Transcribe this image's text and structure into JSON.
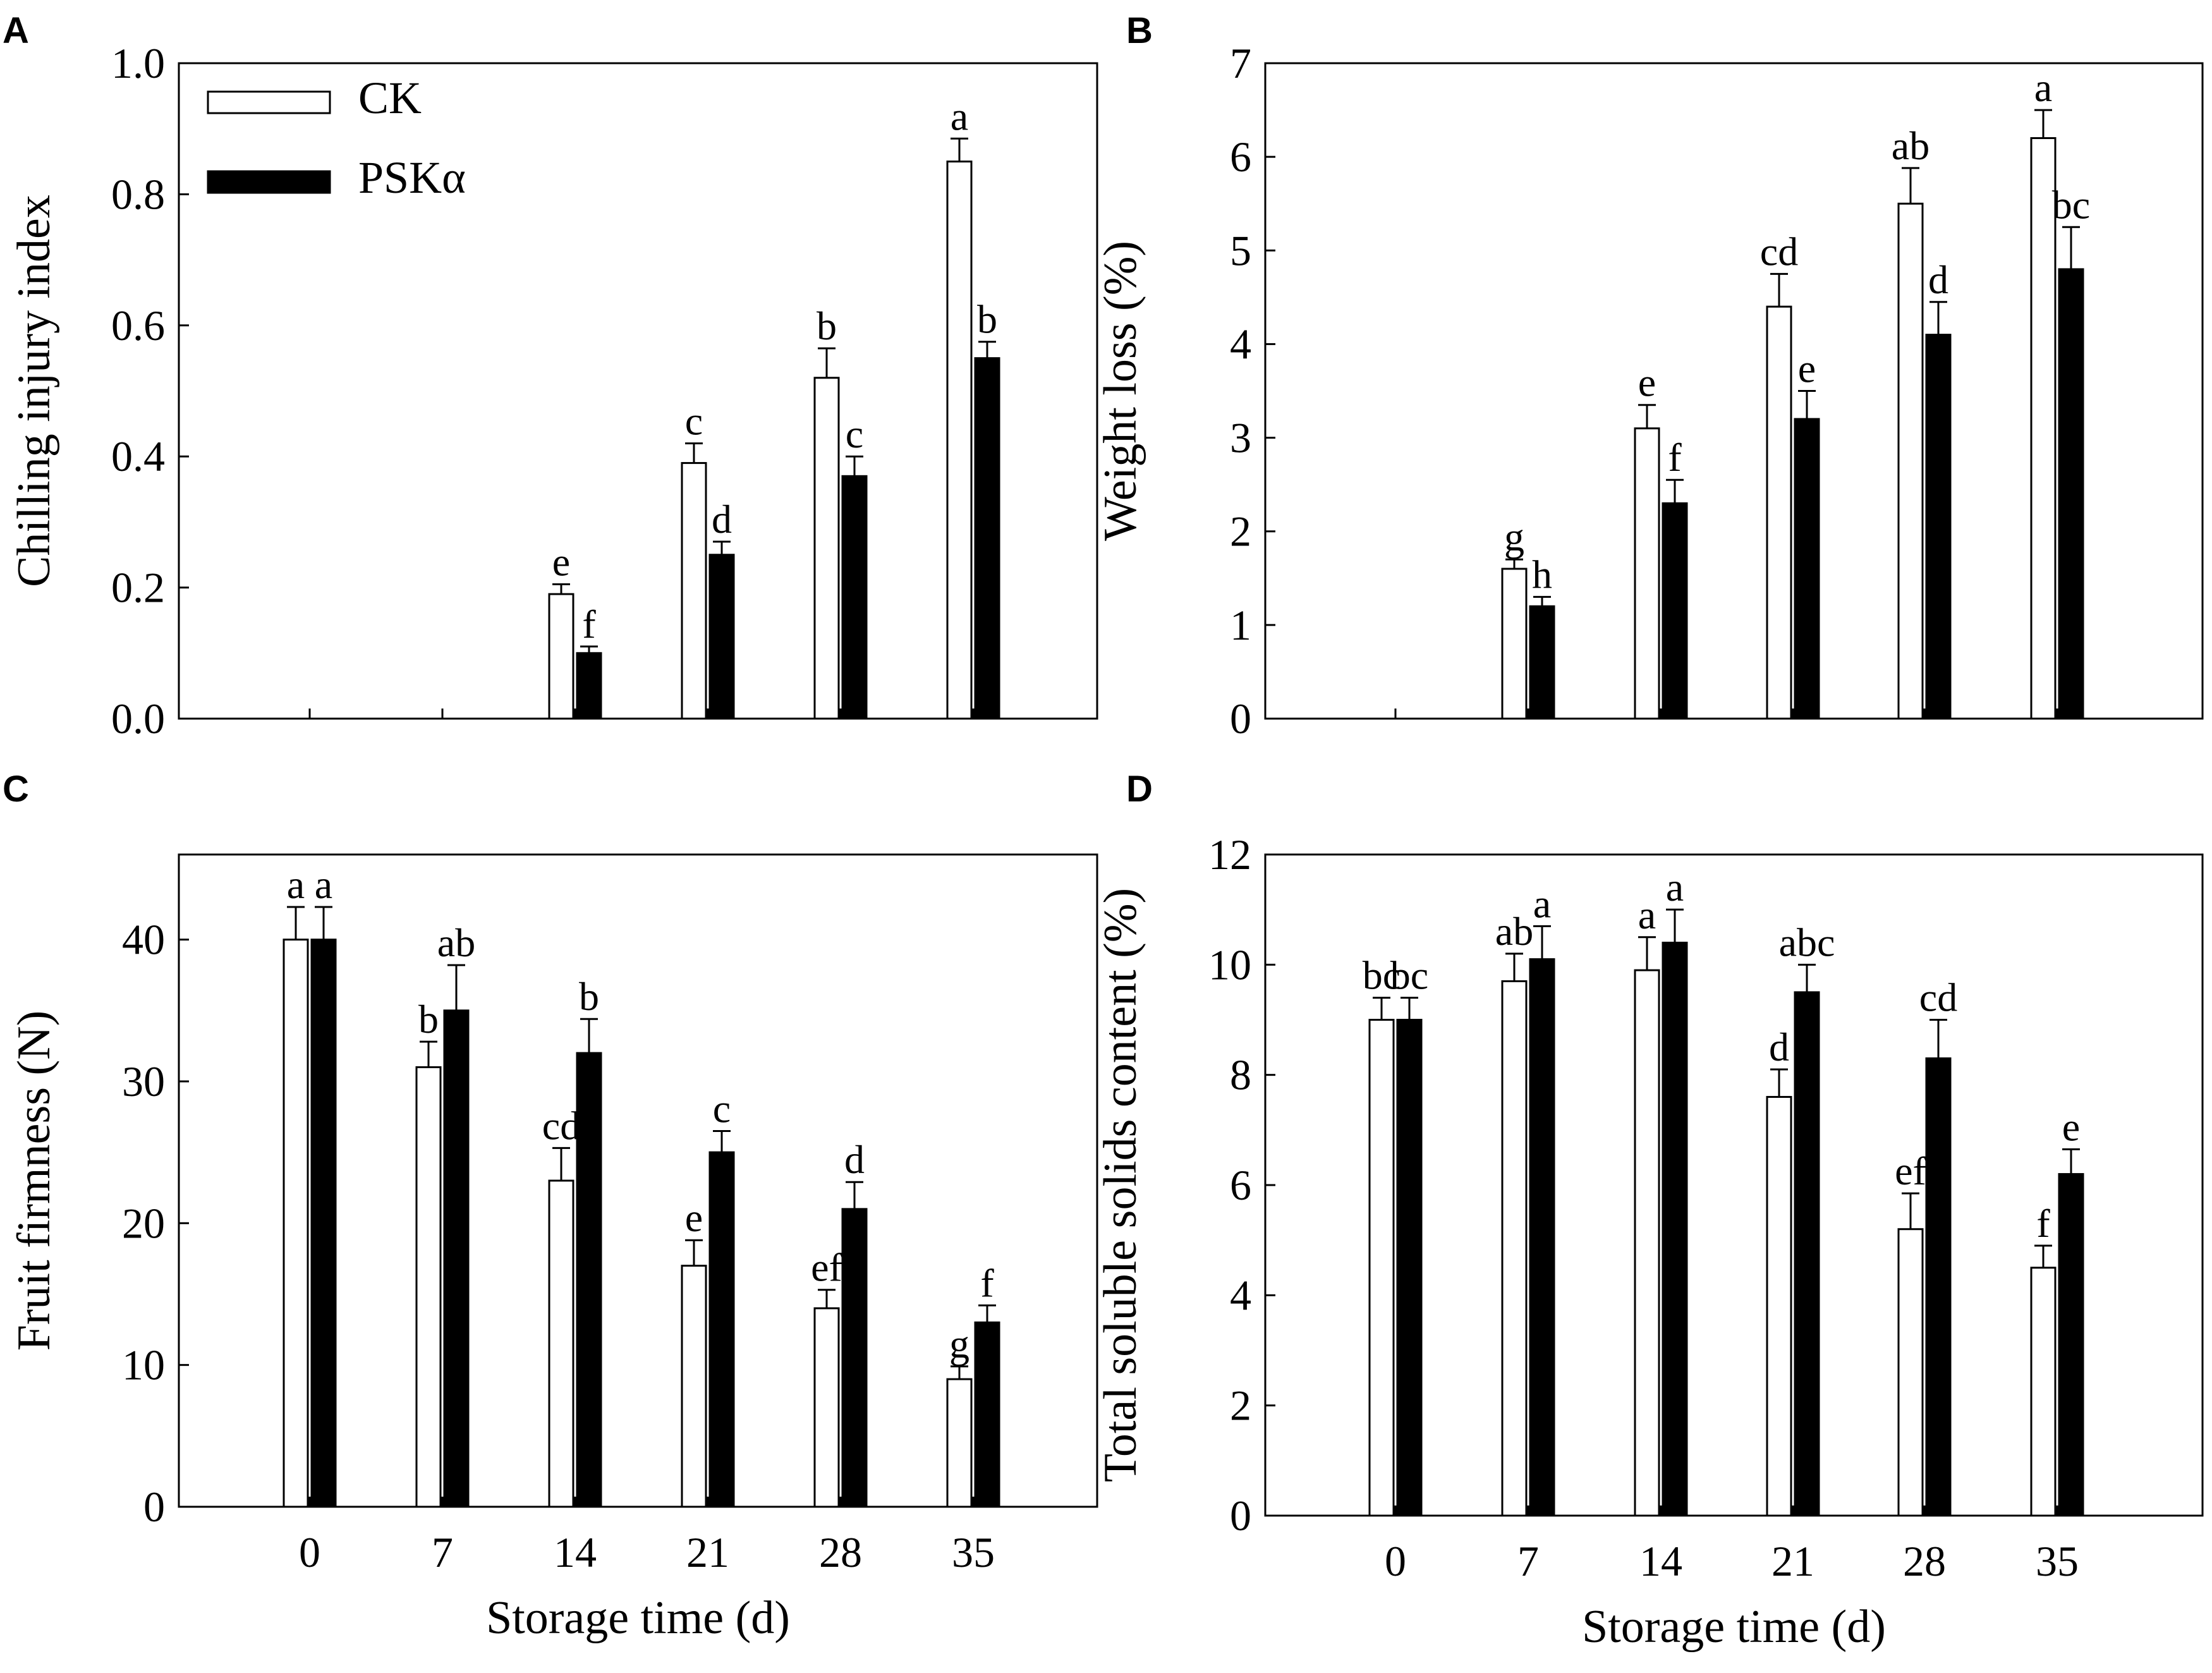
{
  "colors": {
    "CK": "#ffffff",
    "PSK": "#000000",
    "axis": "#000000"
  },
  "legend": [
    {
      "key": "CK",
      "label": "CK"
    },
    {
      "key": "PSK",
      "label": "PSKα"
    }
  ],
  "chart_data": [
    {
      "panel": "A",
      "type": "bar",
      "title": "",
      "xlabel": "",
      "ylabel": "Chilling injury index",
      "ylim": [
        0,
        1.0
      ],
      "yticks": [
        0,
        0.2,
        0.4,
        0.6,
        0.8,
        1.0
      ],
      "ytick_labels": [
        "0.0",
        "0.2",
        "0.4",
        "0.6",
        "0.8",
        "1.0"
      ],
      "categories": [
        "0",
        "7",
        "14",
        "21",
        "28",
        "35"
      ],
      "show_x_labels": false,
      "legend": "top-left",
      "series": [
        {
          "name": "CK",
          "values": [
            null,
            null,
            0.19,
            0.39,
            0.52,
            0.85
          ],
          "errors": [
            null,
            null,
            0.015,
            0.03,
            0.045,
            0.035
          ],
          "letters": [
            null,
            null,
            "e",
            "c",
            "b",
            "a"
          ]
        },
        {
          "name": "PSKα",
          "values": [
            null,
            null,
            0.1,
            0.25,
            0.37,
            0.55
          ],
          "errors": [
            null,
            null,
            0.01,
            0.02,
            0.03,
            0.025
          ],
          "letters": [
            null,
            null,
            "f",
            "d",
            "c",
            "b"
          ]
        }
      ]
    },
    {
      "panel": "B",
      "type": "bar",
      "title": "",
      "xlabel": "",
      "ylabel": "Weight loss (%)",
      "ylim": [
        0,
        7
      ],
      "yticks": [
        0,
        1,
        2,
        3,
        4,
        5,
        6,
        7
      ],
      "ytick_labels": [
        "0",
        "1",
        "2",
        "3",
        "4",
        "5",
        "6",
        "7"
      ],
      "categories": [
        "0",
        "7",
        "14",
        "21",
        "28",
        "35"
      ],
      "show_x_labels": false,
      "series": [
        {
          "name": "CK",
          "values": [
            null,
            1.6,
            3.1,
            4.4,
            5.5,
            6.2
          ],
          "errors": [
            null,
            0.1,
            0.25,
            0.35,
            0.38,
            0.3
          ],
          "letters": [
            null,
            "g",
            "e",
            "cd",
            "ab",
            "a"
          ]
        },
        {
          "name": "PSKα",
          "values": [
            null,
            1.2,
            2.3,
            3.2,
            4.1,
            4.8
          ],
          "errors": [
            null,
            0.1,
            0.25,
            0.3,
            0.35,
            0.45
          ],
          "letters": [
            null,
            "h",
            "f",
            "e",
            "d",
            "bc"
          ]
        }
      ]
    },
    {
      "panel": "C",
      "type": "bar",
      "title": "",
      "xlabel": "Storage time (d)",
      "ylabel": "Fruit firmness (N)",
      "ylim": [
        0,
        46
      ],
      "yticks": [
        0,
        10,
        20,
        30,
        40
      ],
      "ytick_labels": [
        "0",
        "10",
        "20",
        "30",
        "40"
      ],
      "categories": [
        "0",
        "7",
        "14",
        "21",
        "28",
        "35"
      ],
      "show_x_labels": true,
      "series": [
        {
          "name": "CK",
          "values": [
            40,
            31,
            23,
            17,
            14,
            9
          ],
          "errors": [
            2.3,
            1.8,
            2.3,
            1.8,
            1.3,
            0.9
          ],
          "letters": [
            "a",
            "b",
            "cd",
            "e",
            "ef",
            "g"
          ]
        },
        {
          "name": "PSKα",
          "values": [
            40,
            35,
            32,
            25,
            21,
            13
          ],
          "errors": [
            2.3,
            3.2,
            2.4,
            1.5,
            1.9,
            1.2
          ],
          "letters": [
            "a",
            "ab",
            "b",
            "c",
            "d",
            "f"
          ]
        }
      ]
    },
    {
      "panel": "D",
      "type": "bar",
      "title": "",
      "xlabel": "Storage time (d)",
      "ylabel": "Total soluble solids content (%)",
      "ylim": [
        0,
        12
      ],
      "yticks": [
        0,
        2,
        4,
        6,
        8,
        10,
        12
      ],
      "ytick_labels": [
        "0",
        "2",
        "4",
        "6",
        "8",
        "10",
        "12"
      ],
      "categories": [
        "0",
        "7",
        "14",
        "21",
        "28",
        "35"
      ],
      "show_x_labels": true,
      "series": [
        {
          "name": "CK",
          "values": [
            9.0,
            9.7,
            9.9,
            7.6,
            5.2,
            4.5
          ],
          "errors": [
            0.4,
            0.5,
            0.6,
            0.5,
            0.65,
            0.4
          ],
          "letters": [
            "bc",
            "ab",
            "a",
            "d",
            "ef",
            "f"
          ]
        },
        {
          "name": "PSKα",
          "values": [
            9.0,
            10.1,
            10.4,
            9.5,
            8.3,
            6.2
          ],
          "errors": [
            0.4,
            0.6,
            0.6,
            0.5,
            0.7,
            0.45
          ],
          "letters": [
            "bc",
            "a",
            "a",
            "abc",
            "cd",
            "e"
          ]
        }
      ]
    }
  ]
}
